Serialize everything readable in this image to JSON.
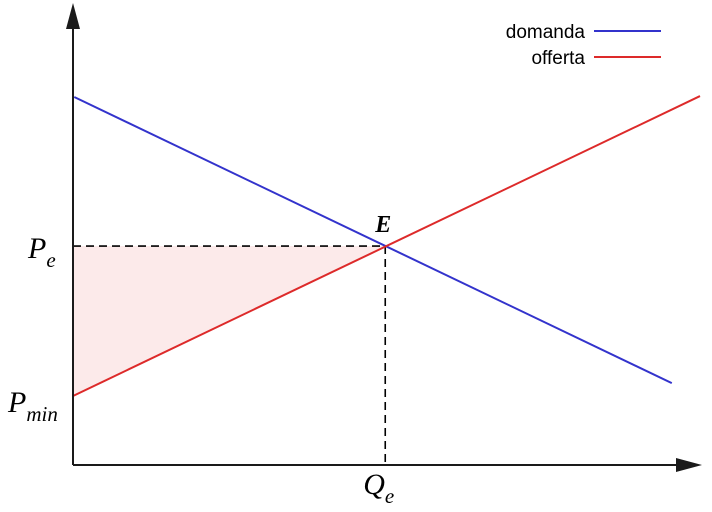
{
  "figure": {
    "background": "#ffffff",
    "colors": {
      "demand": "#3333cc",
      "supply": "#dd2a2a",
      "surplus_fill": "#fceaea",
      "axis": "#1a1a1a",
      "dashed": "#000000"
    },
    "legend": {
      "position": "top-right",
      "items": [
        {
          "label": "domanda",
          "color": "#3333cc"
        },
        {
          "label": "offerta",
          "color": "#dd2a2a"
        }
      ]
    },
    "labels": {
      "equilibrium_point": "E",
      "price_equilibrium_main": "P",
      "price_equilibrium_sub": "e",
      "price_min_main": "P",
      "price_min_sub": "min",
      "quantity_equilibrium_main": "Q",
      "quantity_equilibrium_sub": "e"
    }
  },
  "chart_data": {
    "type": "line",
    "title": "",
    "xlabel": "",
    "ylabel": "",
    "x_range": [
      0,
      1
    ],
    "y_range": [
      0,
      1
    ],
    "grid": false,
    "legend_position": "top-right",
    "series": [
      {
        "name": "domanda",
        "color": "#3333cc",
        "points": [
          [
            0.002,
            0.8
          ],
          [
            0.955,
            0.178
          ]
        ]
      },
      {
        "name": "offerta",
        "color": "#dd2a2a",
        "points": [
          [
            0.0,
            0.15
          ],
          [
            1.0,
            0.802
          ]
        ]
      }
    ],
    "equilibrium": {
      "label": "E",
      "x": 0.498,
      "price": 0.476
    },
    "p_min": 0.15,
    "annotations": [
      "E",
      "P_e",
      "P_min",
      "Q_e"
    ],
    "shaded_region": {
      "description": "triangle bounded by y-axis, dashed P_e line and offerta (supply) line",
      "fill": "#fceaea"
    }
  }
}
